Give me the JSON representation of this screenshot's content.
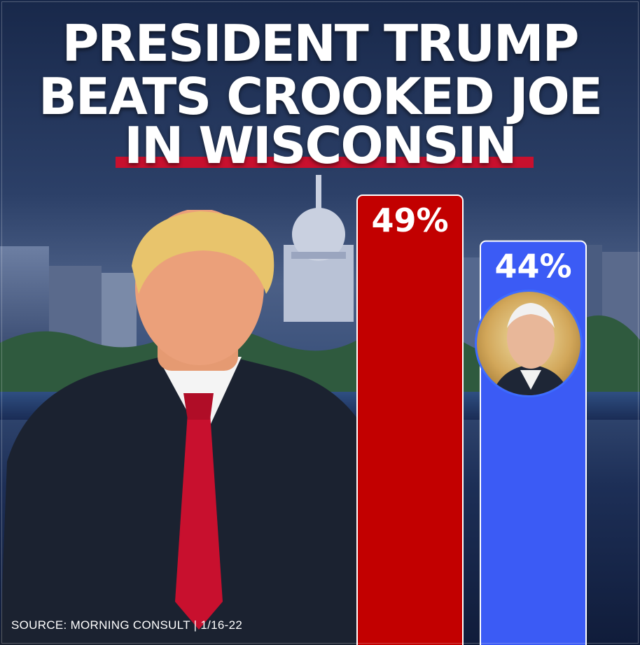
{
  "headline": {
    "line1": "PRESIDENT TRUMP",
    "line2": "BEATS CROOKED JOE",
    "line3": "IN WISCONSIN"
  },
  "source": "SOURCE: MORNING CONSULT | 1/16-22",
  "colors": {
    "trump_bar": "#c20000",
    "biden_bar": "#3b5bf5",
    "underline": "#c8102e"
  },
  "icons": {
    "left_photo": "trump-portrait-icon",
    "circle_photo": "biden-portrait-icon",
    "background": "madison-capitol-skyline-icon"
  },
  "chart_data": {
    "type": "bar",
    "categories": [
      "",
      ""
    ],
    "values": [
      49,
      44
    ],
    "labels": [
      "49%",
      "44%"
    ],
    "ylim": [
      0,
      100
    ],
    "grid": false
  }
}
